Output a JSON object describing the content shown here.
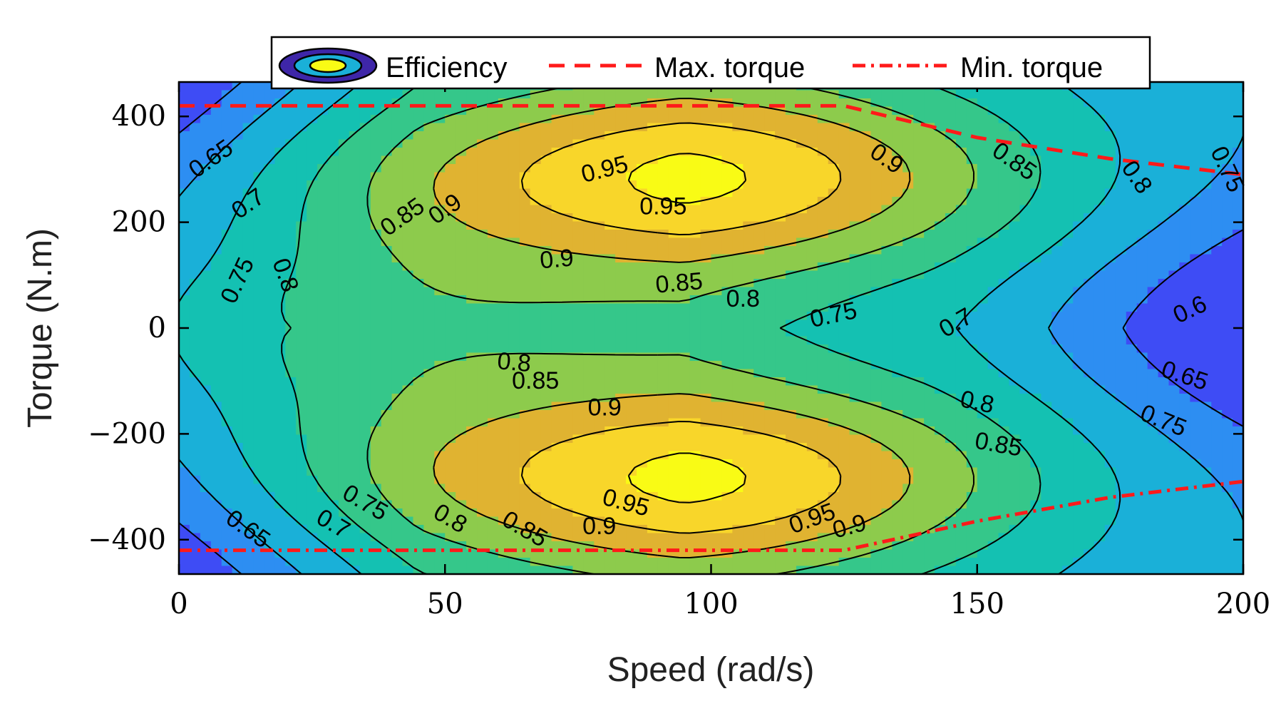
{
  "chart_data": {
    "type": "contour",
    "title": "",
    "xlabel": "Speed (rad/s)",
    "ylabel": "Torque (N.m)",
    "xlim": [
      0,
      200
    ],
    "ylim": [
      -465,
      465
    ],
    "xticks": [
      0,
      50,
      100,
      150,
      200
    ],
    "yticks": [
      -400,
      -200,
      0,
      200,
      400
    ],
    "xtick_labels": [
      "0",
      "50",
      "100",
      "150",
      "200"
    ],
    "ytick_labels": [
      "−400",
      "−200",
      "0",
      "200",
      "400"
    ],
    "contour_levels": [
      0.6,
      0.65,
      0.7,
      0.75,
      0.8,
      0.85,
      0.9,
      0.95
    ],
    "contour_labels": [
      {
        "text": "0.65",
        "x": 6,
        "y": 320,
        "angle": -35
      },
      {
        "text": "0.7",
        "x": 13,
        "y": 235,
        "angle": -35
      },
      {
        "text": "0.75",
        "x": 11,
        "y": 90,
        "angle": -65
      },
      {
        "text": "0.8",
        "x": 20,
        "y": 100,
        "angle": 70
      },
      {
        "text": "0.85",
        "x": 42,
        "y": 210,
        "angle": -35
      },
      {
        "text": "0.9",
        "x": 50,
        "y": 225,
        "angle": -35
      },
      {
        "text": "0.95",
        "x": 80,
        "y": 300,
        "angle": -14
      },
      {
        "text": "0.95",
        "x": 91,
        "y": 230,
        "angle": 0
      },
      {
        "text": "0.9",
        "x": 71,
        "y": 130,
        "angle": -5
      },
      {
        "text": "0.85",
        "x": 94,
        "y": 85,
        "angle": -5
      },
      {
        "text": "0.8",
        "x": 106,
        "y": 55,
        "angle": 0
      },
      {
        "text": "0.75",
        "x": 123,
        "y": 25,
        "angle": -12
      },
      {
        "text": "0.7",
        "x": 146,
        "y": 10,
        "angle": -30
      },
      {
        "text": "0.6",
        "x": 190,
        "y": 35,
        "angle": -25
      },
      {
        "text": "0.65",
        "x": 189,
        "y": -90,
        "angle": 18
      },
      {
        "text": "0.75",
        "x": 185,
        "y": -175,
        "angle": 22
      },
      {
        "text": "0.8",
        "x": 150,
        "y": -140,
        "angle": 12
      },
      {
        "text": "0.85",
        "x": 154,
        "y": -220,
        "angle": 10
      },
      {
        "text": "0.8",
        "x": 63,
        "y": -65,
        "angle": 5
      },
      {
        "text": "0.85",
        "x": 67,
        "y": -100,
        "angle": 0
      },
      {
        "text": "0.9",
        "x": 80,
        "y": -150,
        "angle": 0
      },
      {
        "text": "0.95",
        "x": 84,
        "y": -330,
        "angle": 15
      },
      {
        "text": "0.95",
        "x": 119,
        "y": -360,
        "angle": -20
      },
      {
        "text": "0.9",
        "x": 126,
        "y": -375,
        "angle": -15
      },
      {
        "text": "0.9",
        "x": 79,
        "y": -375,
        "angle": 0
      },
      {
        "text": "0.85",
        "x": 65,
        "y": -380,
        "angle": 30
      },
      {
        "text": "0.8",
        "x": 51,
        "y": -360,
        "angle": 30
      },
      {
        "text": "0.75",
        "x": 35,
        "y": -330,
        "angle": 30
      },
      {
        "text": "0.7",
        "x": 29,
        "y": -370,
        "angle": 30
      },
      {
        "text": "0.65",
        "x": 13,
        "y": -380,
        "angle": 35
      },
      {
        "text": "0.9",
        "x": 133,
        "y": 320,
        "angle": 35
      },
      {
        "text": "0.85",
        "x": 157,
        "y": 315,
        "angle": 35
      },
      {
        "text": "0.8",
        "x": 180,
        "y": 285,
        "angle": 55
      },
      {
        "text": "0.75",
        "x": 197,
        "y": 300,
        "angle": 65
      }
    ],
    "series": [
      {
        "name": "Max. torque",
        "style": "dashed",
        "color": "#ff1a1a",
        "x": [
          0,
          125,
          150,
          175,
          200
        ],
        "y": [
          420,
          420,
          360,
          320,
          290
        ]
      },
      {
        "name": "Min. torque",
        "style": "dashdot",
        "color": "#ff1a1a",
        "x": [
          0,
          125,
          150,
          175,
          200
        ],
        "y": [
          -420,
          -420,
          -365,
          -320,
          -290
        ]
      }
    ],
    "legend": {
      "position": "top-outside",
      "entries": [
        "Efficiency",
        "Max. torque",
        "Min. torque"
      ]
    },
    "colormap": [
      "#3e26a8",
      "#3e4cf5",
      "#2d8ef2",
      "#1ab0d8",
      "#14c1b2",
      "#35c78a",
      "#8dcb4c",
      "#e0b331",
      "#f8d62a",
      "#f9fb15"
    ],
    "grid": false
  }
}
